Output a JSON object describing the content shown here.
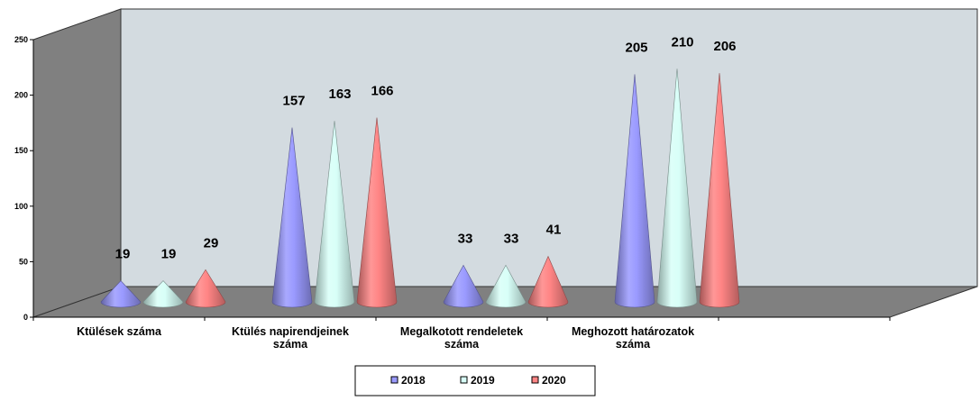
{
  "chart_data": {
    "type": "bar",
    "shape": "3d-cone",
    "categories": [
      [
        "Ktülések száma"
      ],
      [
        "Ktülés napirendjeinek",
        "száma"
      ],
      [
        "Megalkotott rendeletek",
        "száma"
      ],
      [
        "Meghozott határozatok",
        "száma"
      ]
    ],
    "series": [
      {
        "name": "2018",
        "values": [
          19,
          157,
          33,
          205
        ],
        "color": "#9a9aff"
      },
      {
        "name": "2019",
        "values": [
          19,
          163,
          33,
          210
        ],
        "color": "#d8fff8"
      },
      {
        "name": "2020",
        "values": [
          29,
          166,
          41,
          206
        ],
        "color": "#ff8585"
      }
    ],
    "yticks": [
      "0",
      "50",
      "100",
      "150",
      "200",
      "250"
    ],
    "ylim": [
      0,
      250
    ],
    "legend_position": "bottom",
    "wall_color": "#d3dbe0",
    "floor_color": "#808080",
    "side_wall_color": "#808080"
  }
}
